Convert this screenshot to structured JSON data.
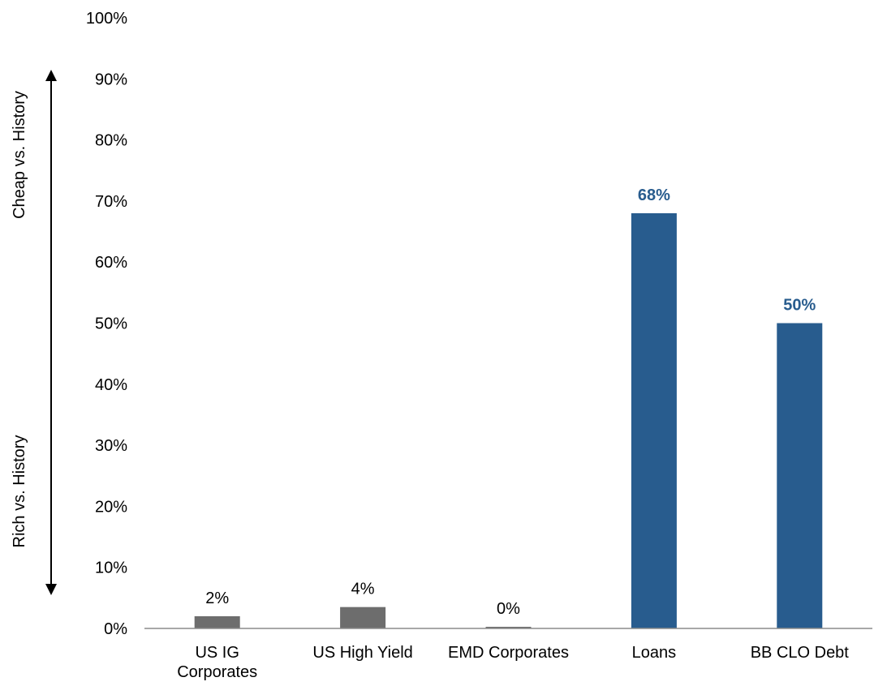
{
  "chart_data": {
    "type": "bar",
    "categories": [
      [
        "US IG",
        "Corporates"
      ],
      [
        "US High Yield"
      ],
      [
        "EMD Corporates"
      ],
      [
        "Loans"
      ],
      [
        "BB CLO Debt"
      ]
    ],
    "values": [
      2,
      3.5,
      0.2,
      68,
      50
    ],
    "data_labels": [
      "2%",
      "4%",
      "0%",
      "68%",
      "50%"
    ],
    "bar_colors": [
      "#6d6d6d",
      "#6d6d6d",
      "#6d6d6d",
      "#285c8e",
      "#285c8e"
    ],
    "label_colors": [
      "#000000",
      "#000000",
      "#000000",
      "#285c8e",
      "#285c8e"
    ],
    "label_bold": [
      false,
      false,
      false,
      true,
      true
    ],
    "ylim": [
      0,
      100
    ],
    "yticks": [
      0,
      10,
      20,
      30,
      40,
      50,
      60,
      70,
      80,
      90,
      100
    ],
    "ytick_labels": [
      "0%",
      "10%",
      "20%",
      "30%",
      "40%",
      "50%",
      "60%",
      "70%",
      "80%",
      "90%",
      "100%"
    ],
    "grid": false,
    "side_annotations": {
      "top": "Cheap vs. History",
      "bottom": "Rich vs. History"
    }
  }
}
